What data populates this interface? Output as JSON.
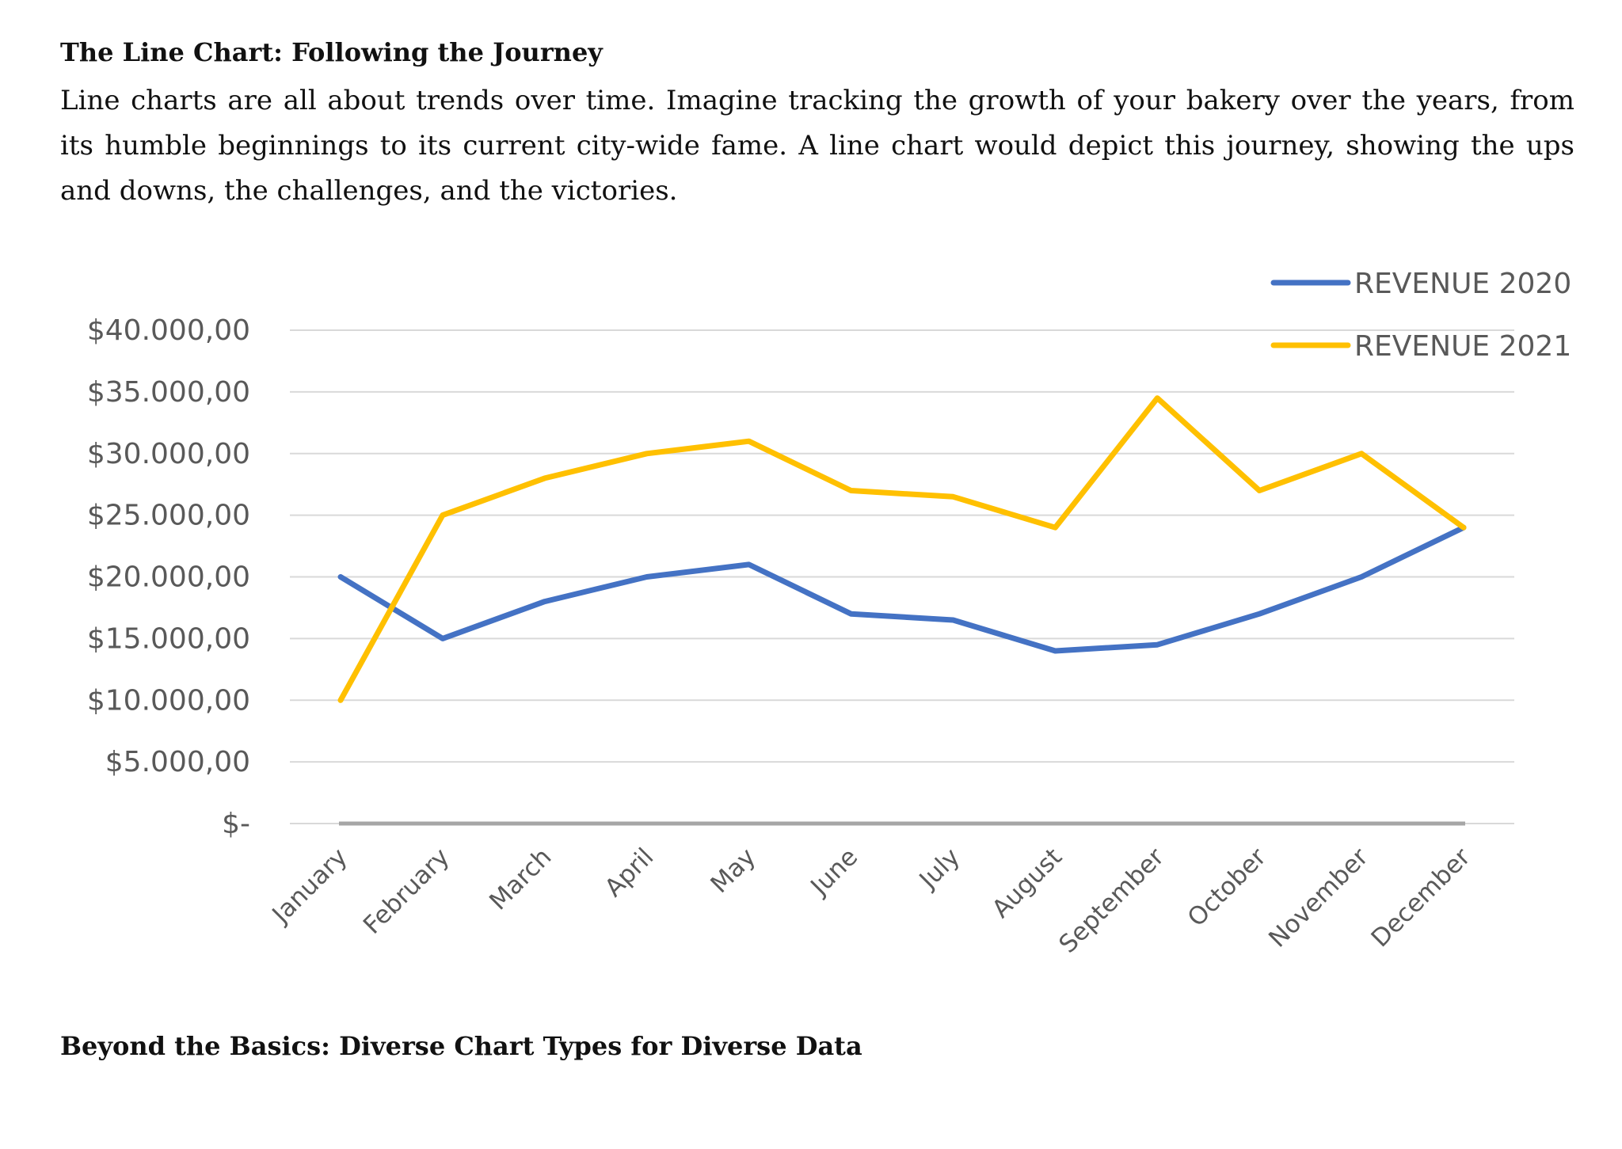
{
  "document": {
    "heading": "The Line Chart: Following the Journey",
    "paragraph": "Line charts are all about trends over time. Imagine tracking the growth of your bakery over the years, from its humble beginnings to its current city-wide fame. A line chart would depict this journey, showing the ups and downs, the challenges, and the victories.",
    "next_heading": "Beyond the Basics: Diverse Chart Types for Diverse Data"
  },
  "chart_data": {
    "type": "line",
    "title": "",
    "xlabel": "",
    "ylabel": "",
    "categories": [
      "January",
      "February",
      "March",
      "April",
      "May",
      "June",
      "July",
      "August",
      "September",
      "October",
      "November",
      "December"
    ],
    "series": [
      {
        "name": "REVENUE 2020",
        "color": "#4472C4",
        "values": [
          20000,
          15000,
          18000,
          20000,
          21000,
          17000,
          16500,
          14000,
          14500,
          17000,
          20000,
          24000
        ]
      },
      {
        "name": "REVENUE 2021",
        "color": "#FFC000",
        "values": [
          10000,
          25000,
          28000,
          30000,
          31000,
          27000,
          26500,
          24000,
          34500,
          27000,
          30000,
          24000
        ]
      }
    ],
    "ylim": [
      0,
      40000
    ],
    "yticks": [
      0,
      5000,
      10000,
      15000,
      20000,
      25000,
      30000,
      35000,
      40000
    ],
    "ytick_labels": [
      "$-",
      "$5.000,00",
      "$10.000,00",
      "$15.000,00",
      "$20.000,00",
      "$25.000,00",
      "$30.000,00",
      "$35.000,00",
      "$40.000,00"
    ],
    "grid": true,
    "legend_position": "top-right",
    "colors": {
      "grid": "#D9D9D9",
      "axis": "#A6A6A6"
    }
  }
}
